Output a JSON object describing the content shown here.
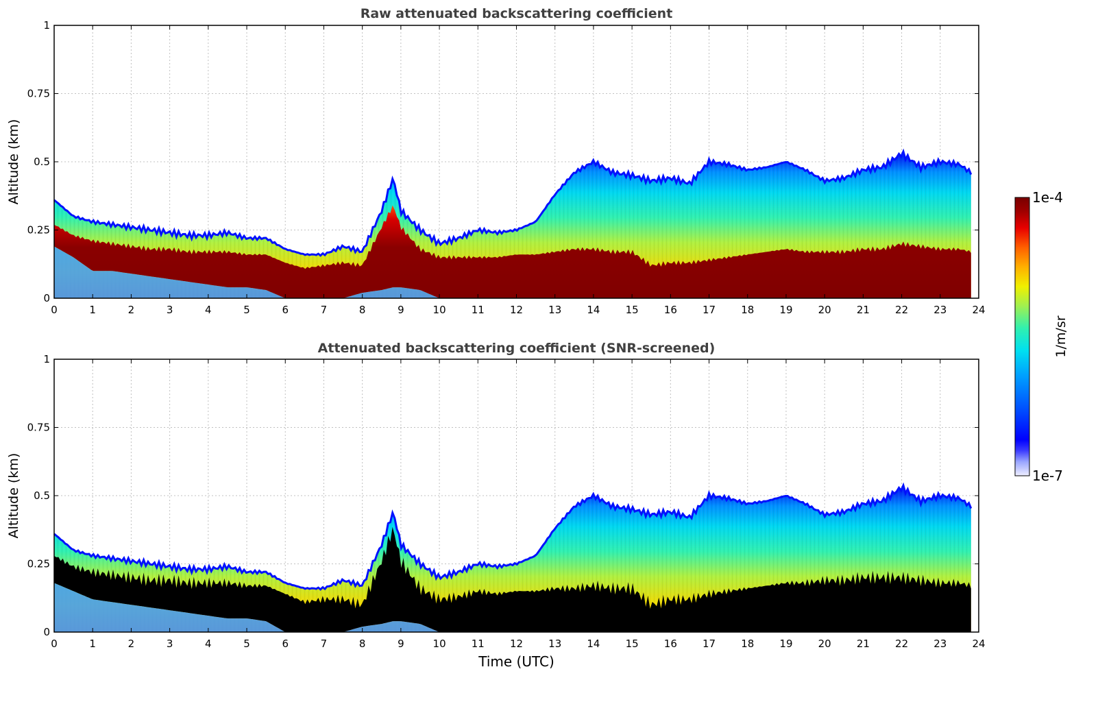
{
  "chart_data": [
    {
      "type": "heatmap",
      "title": "Raw attenuated backscattering coefficient",
      "xlabel": "",
      "ylabel": "Altitude (km)",
      "xlim": [
        0,
        24
      ],
      "ylim": [
        0,
        1
      ],
      "xticks": [
        "0",
        "1",
        "2",
        "3",
        "4",
        "5",
        "6",
        "7",
        "8",
        "9",
        "10",
        "11",
        "12",
        "13",
        "14",
        "15",
        "16",
        "17",
        "18",
        "19",
        "20",
        "21",
        "22",
        "23",
        "24"
      ],
      "yticks": [
        "0",
        "0.25",
        "0.5",
        "0.75",
        "1"
      ],
      "ytick_values": [
        0,
        0.25,
        0.5,
        0.75,
        1
      ],
      "grid": true,
      "time_utc": [
        0,
        0.5,
        1,
        1.5,
        2,
        2.5,
        3,
        3.5,
        4,
        4.5,
        5,
        5.5,
        6,
        6.5,
        7,
        7.5,
        8,
        8.5,
        8.8,
        9,
        9.5,
        10,
        10.5,
        11,
        11.5,
        12,
        12.5,
        13,
        13.5,
        14,
        14.5,
        15,
        15.5,
        16,
        16.5,
        17,
        17.5,
        18,
        18.5,
        19,
        19.5,
        20,
        20.5,
        21,
        21.5,
        22,
        22.5,
        23,
        23.5,
        23.8
      ],
      "layer_top_km": [
        0.36,
        0.3,
        0.28,
        0.27,
        0.26,
        0.25,
        0.24,
        0.23,
        0.23,
        0.24,
        0.22,
        0.22,
        0.18,
        0.16,
        0.16,
        0.19,
        0.17,
        0.32,
        0.44,
        0.32,
        0.25,
        0.2,
        0.22,
        0.25,
        0.24,
        0.25,
        0.28,
        0.38,
        0.46,
        0.5,
        0.46,
        0.45,
        0.43,
        0.44,
        0.42,
        0.5,
        0.49,
        0.47,
        0.48,
        0.5,
        0.47,
        0.43,
        0.44,
        0.47,
        0.48,
        0.53,
        0.48,
        0.5,
        0.49,
        0.46
      ],
      "dense_layer_top_km": [
        0.27,
        0.23,
        0.21,
        0.2,
        0.19,
        0.18,
        0.18,
        0.17,
        0.17,
        0.17,
        0.16,
        0.16,
        0.13,
        0.11,
        0.12,
        0.13,
        0.12,
        0.26,
        0.34,
        0.26,
        0.18,
        0.15,
        0.15,
        0.15,
        0.15,
        0.16,
        0.16,
        0.17,
        0.18,
        0.18,
        0.17,
        0.17,
        0.12,
        0.13,
        0.13,
        0.14,
        0.15,
        0.16,
        0.17,
        0.18,
        0.17,
        0.17,
        0.17,
        0.18,
        0.18,
        0.2,
        0.19,
        0.18,
        0.18,
        0.17
      ],
      "dense_layer_bottom_km": [
        0.19,
        0.15,
        0.1,
        0.1,
        0.09,
        0.08,
        0.07,
        0.06,
        0.05,
        0.04,
        0.04,
        0.03,
        0,
        0,
        0,
        0,
        0.02,
        0.03,
        0.04,
        0.04,
        0.03,
        0,
        0,
        0,
        0,
        0,
        0,
        0,
        0,
        0,
        0,
        0,
        0,
        0,
        0,
        0,
        0,
        0,
        0,
        0,
        0,
        0,
        0,
        0,
        0,
        0,
        0,
        0,
        0,
        0
      ]
    },
    {
      "type": "heatmap",
      "title": "Attenuated backscattering coefficient (SNR-screened)",
      "xlabel": "Time (UTC)",
      "ylabel": "Altitude (km)",
      "xlim": [
        0,
        24
      ],
      "ylim": [
        0,
        1
      ],
      "xticks": [
        "0",
        "1",
        "2",
        "3",
        "4",
        "5",
        "6",
        "7",
        "8",
        "9",
        "10",
        "11",
        "12",
        "13",
        "14",
        "15",
        "16",
        "17",
        "18",
        "19",
        "20",
        "21",
        "22",
        "23",
        "24"
      ],
      "yticks": [
        "0",
        "0.25",
        "0.5",
        "0.75",
        "1"
      ],
      "ytick_values": [
        0,
        0.25,
        0.5,
        0.75,
        1
      ],
      "grid": true,
      "time_utc": [
        0,
        0.5,
        1,
        1.5,
        2,
        2.5,
        3,
        3.5,
        4,
        4.5,
        5,
        5.5,
        6,
        6.5,
        7,
        7.5,
        8,
        8.5,
        8.8,
        9,
        9.5,
        10,
        10.5,
        11,
        11.5,
        12,
        12.5,
        13,
        13.5,
        14,
        14.5,
        15,
        15.5,
        16,
        16.5,
        17,
        17.5,
        18,
        18.5,
        19,
        19.5,
        20,
        20.5,
        21,
        21.5,
        22,
        22.5,
        23,
        23.5,
        23.8
      ],
      "layer_top_km": [
        0.36,
        0.3,
        0.28,
        0.27,
        0.26,
        0.25,
        0.24,
        0.23,
        0.23,
        0.24,
        0.22,
        0.22,
        0.18,
        0.16,
        0.16,
        0.19,
        0.17,
        0.32,
        0.44,
        0.32,
        0.25,
        0.2,
        0.22,
        0.25,
        0.24,
        0.25,
        0.28,
        0.38,
        0.46,
        0.5,
        0.46,
        0.45,
        0.43,
        0.44,
        0.42,
        0.5,
        0.49,
        0.47,
        0.48,
        0.5,
        0.47,
        0.43,
        0.44,
        0.47,
        0.48,
        0.53,
        0.48,
        0.5,
        0.49,
        0.46
      ],
      "screened_top_km": [
        0.28,
        0.24,
        0.22,
        0.21,
        0.2,
        0.19,
        0.19,
        0.18,
        0.18,
        0.18,
        0.17,
        0.17,
        0.14,
        0.11,
        0.12,
        0.12,
        0.1,
        0.26,
        0.38,
        0.26,
        0.16,
        0.12,
        0.13,
        0.15,
        0.14,
        0.15,
        0.15,
        0.16,
        0.16,
        0.17,
        0.16,
        0.16,
        0.1,
        0.12,
        0.12,
        0.14,
        0.15,
        0.16,
        0.17,
        0.18,
        0.18,
        0.19,
        0.19,
        0.2,
        0.2,
        0.2,
        0.19,
        0.18,
        0.18,
        0.17
      ],
      "screened_bottom_km": [
        0.18,
        0.15,
        0.12,
        0.11,
        0.1,
        0.09,
        0.08,
        0.07,
        0.06,
        0.05,
        0.05,
        0.04,
        0,
        0,
        0,
        0,
        0.02,
        0.03,
        0.04,
        0.04,
        0.03,
        0,
        0,
        0,
        0,
        0,
        0,
        0,
        0,
        0,
        0,
        0,
        0,
        0,
        0,
        0,
        0,
        0,
        0,
        0,
        0,
        0,
        0,
        0,
        0,
        0,
        0,
        0,
        0,
        0
      ]
    }
  ],
  "colorbar": {
    "label": "1/m/sr",
    "max_label": "1e-4",
    "min_label": "1e-7",
    "scale": "log",
    "colors": [
      "#eeeeff",
      "#9aa6ff",
      "#3c3cff",
      "#0000ff",
      "#0050ff",
      "#00a0ff",
      "#00e0f0",
      "#30f0b0",
      "#a0f050",
      "#f0f000",
      "#ffb000",
      "#ff6000",
      "#e80000",
      "#a00000",
      "#780000"
    ]
  },
  "colors": {
    "screened": "#000000",
    "axes": "#000000",
    "grid": "#c0c0c0",
    "title": "#404040"
  }
}
